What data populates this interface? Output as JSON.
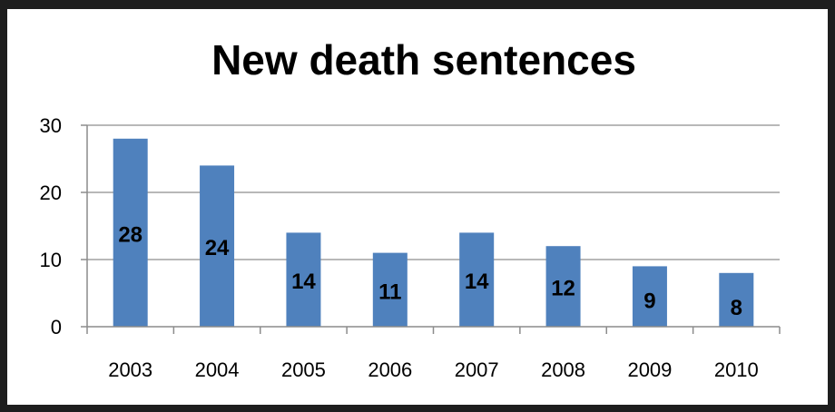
{
  "chart_data": {
    "type": "bar",
    "title": "New death sentences",
    "xlabel": "",
    "ylabel": "",
    "categories": [
      "2003",
      "2004",
      "2005",
      "2006",
      "2007",
      "2008",
      "2009",
      "2010"
    ],
    "values": [
      28,
      24,
      14,
      11,
      14,
      12,
      9,
      8
    ],
    "ylim": [
      0,
      30
    ],
    "yticks": [
      0,
      10,
      20,
      30
    ],
    "grid": true,
    "legend": "none",
    "bar_color": "#4f81bd",
    "data_labels": true
  }
}
